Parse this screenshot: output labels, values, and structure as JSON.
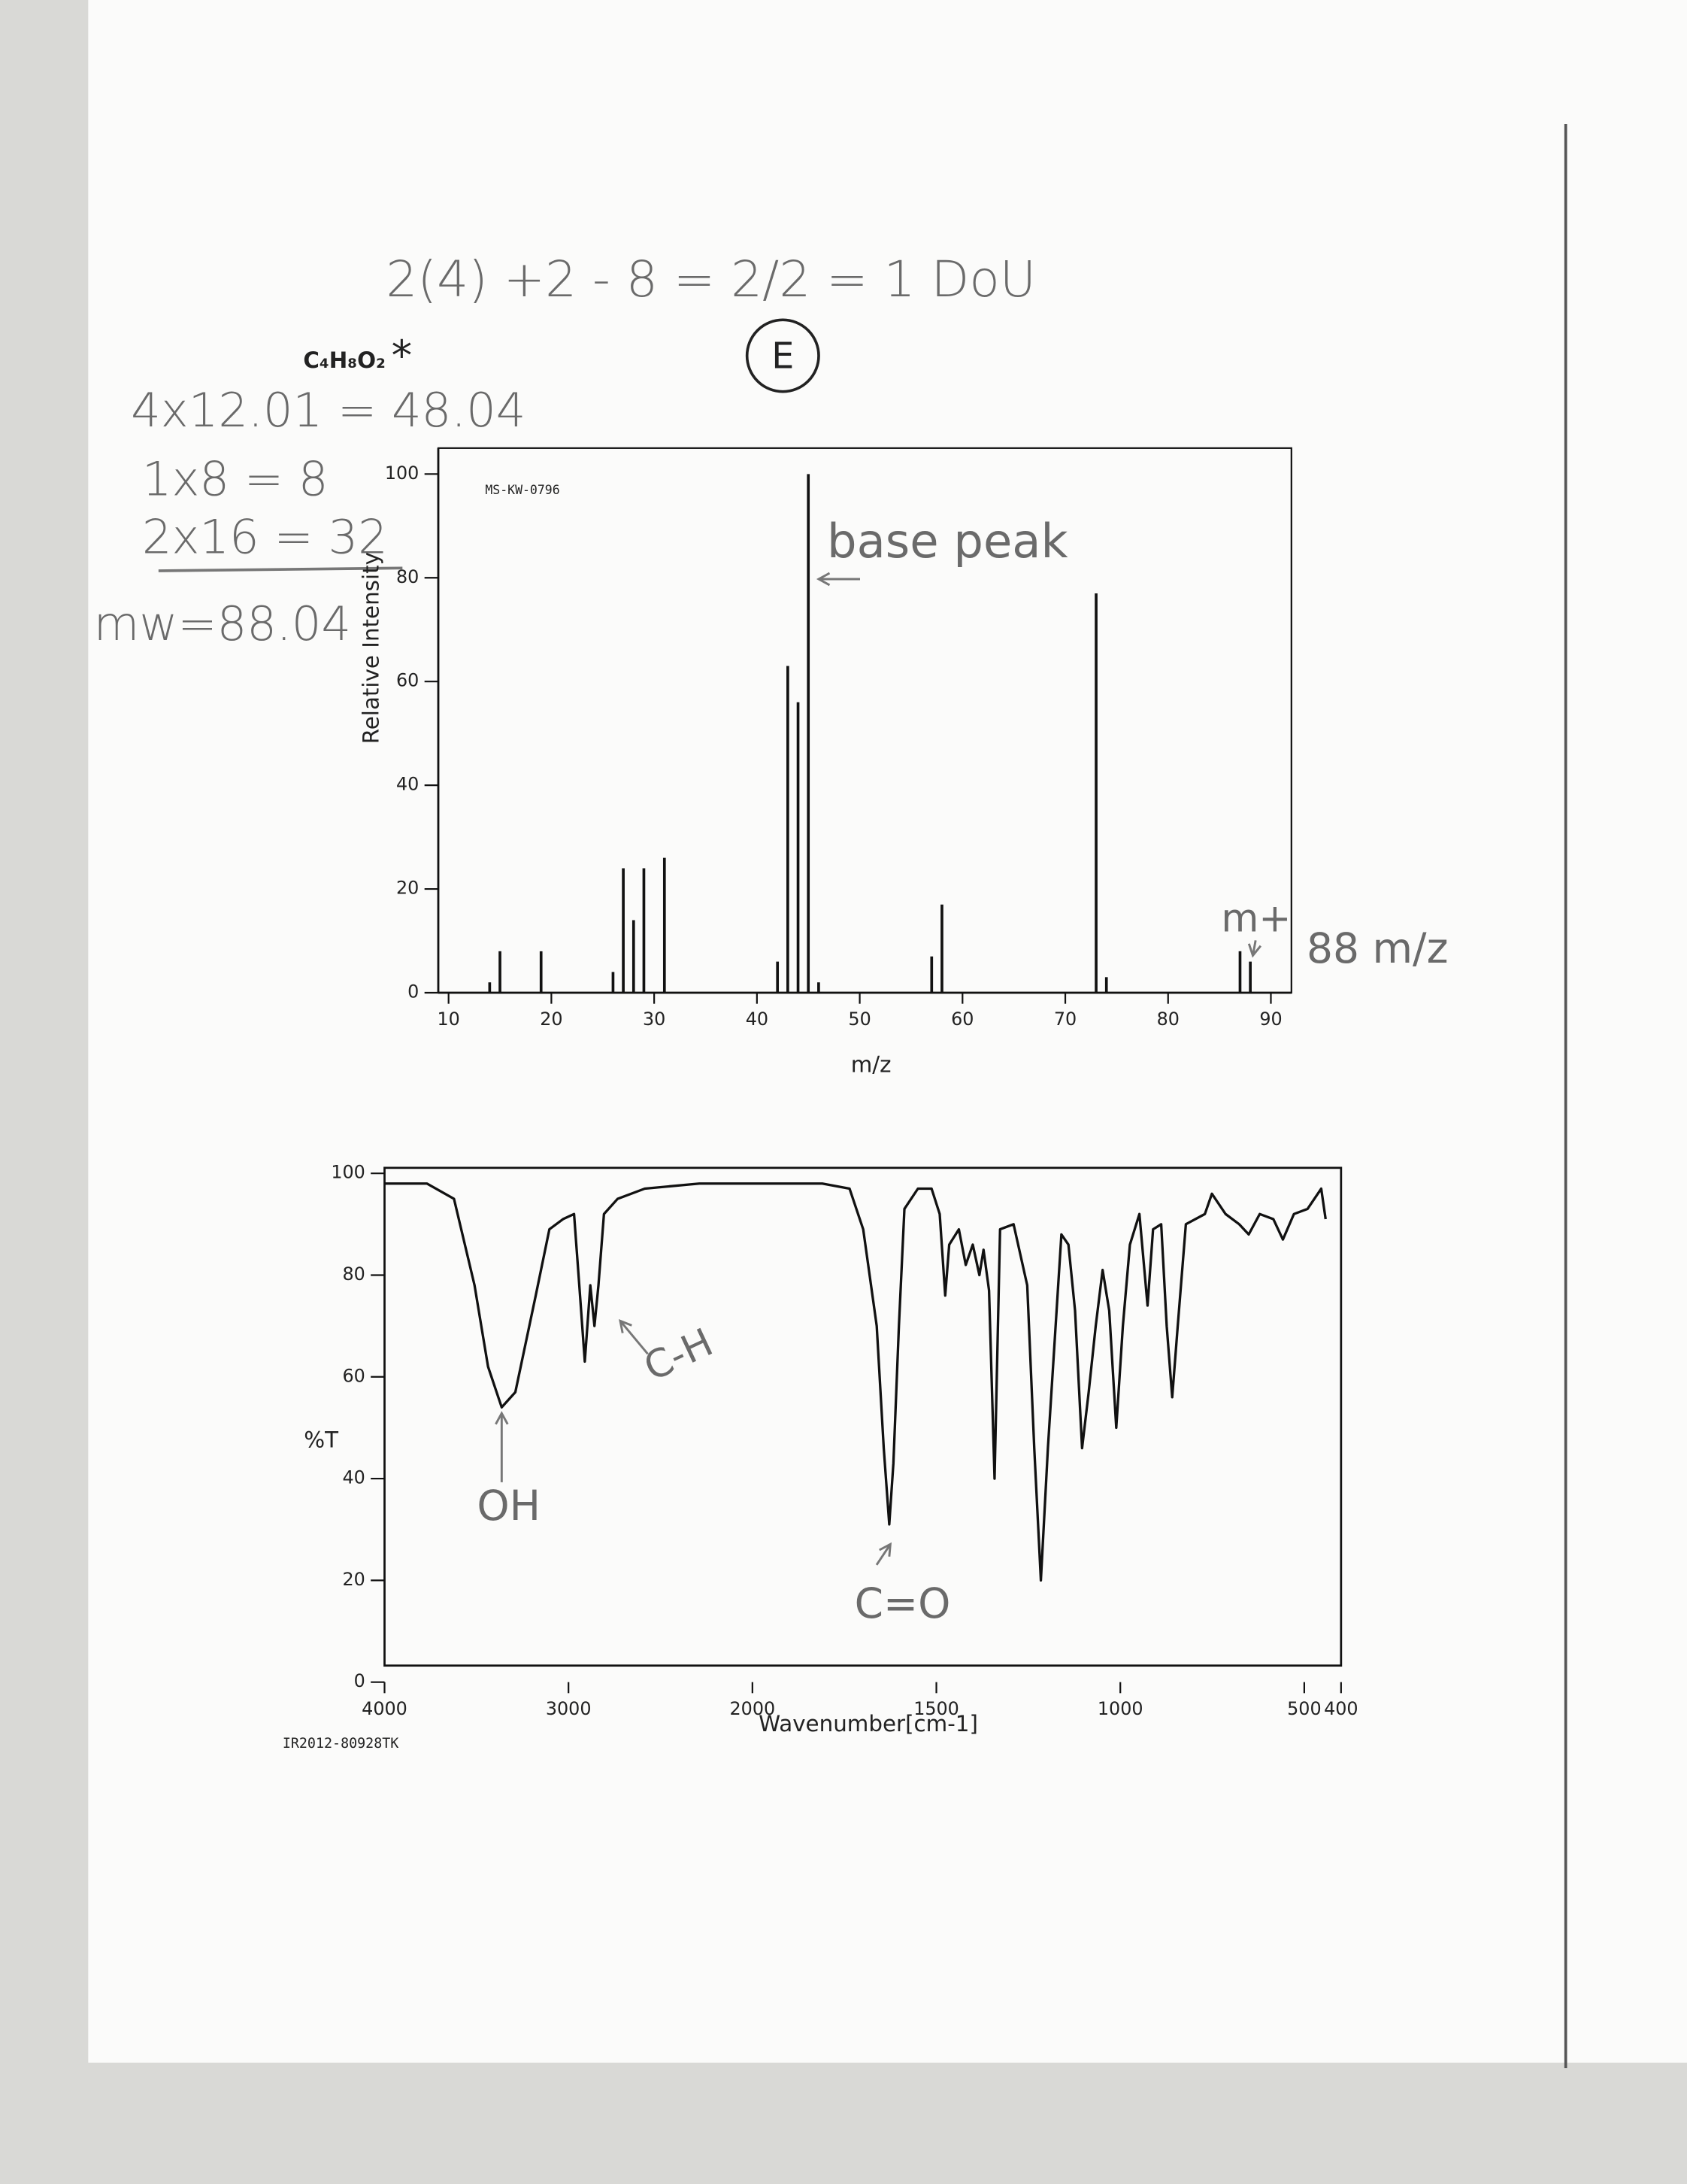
{
  "notes": [
    "2(4) +2 - 8 = 2/2 = 1 DoU",
    "E",
    "C₄H₈O₂",
    "*",
    "4x12.01 = 48.04",
    "1x8 = 8",
    "2x16 = 32",
    "mw=88.04"
  ],
  "chart_data": [
    {
      "type": "bar",
      "xlabel": "m/z",
      "ylabel": "Relative Intensity",
      "color": "#111111",
      "annotations": [
        "MS-KW-0796",
        "base peak",
        "m+",
        "88 m/z"
      ],
      "x": [
        14,
        15,
        19,
        26,
        27,
        28,
        29,
        31,
        42,
        43,
        44,
        45,
        46,
        57,
        58,
        73,
        74,
        87,
        88
      ],
      "values": [
        2,
        8,
        8,
        4,
        24,
        14,
        24,
        26,
        6,
        63,
        56,
        100,
        2,
        7,
        17,
        77,
        3,
        8,
        6
      ],
      "xlim": [
        9,
        92
      ],
      "xticks": [
        10,
        20,
        30,
        40,
        50,
        60,
        70,
        80,
        90
      ],
      "ylim": [
        0,
        105
      ],
      "yticks": [
        0,
        20,
        40,
        60,
        80,
        100
      ]
    },
    {
      "type": "line",
      "xlabel": "Wavenumber[cm-1]",
      "ylabel": "%T",
      "color": "#111111",
      "annotations": [
        "IR2012-80928TK",
        "OH",
        "C-H",
        "C=O"
      ],
      "x": [
        4000,
        3770,
        3622,
        3511,
        3437,
        3363,
        3289,
        3178,
        3104,
        3030,
        2970,
        2941,
        2911,
        2881,
        2859,
        2837,
        2807,
        2733,
        2585,
        2289,
        2000,
        1810,
        1736,
        1699,
        1662,
        1643,
        1628,
        1617,
        1602,
        1587,
        1550,
        1513,
        1491,
        1476,
        1465,
        1439,
        1420,
        1401,
        1383,
        1372,
        1357,
        1342,
        1327,
        1290,
        1253,
        1234,
        1216,
        1197,
        1160,
        1141,
        1123,
        1104,
        1086,
        1067,
        1048,
        1030,
        1011,
        993,
        974,
        948,
        926,
        911,
        889,
        874,
        859,
        844,
        822,
        770,
        751,
        714,
        677,
        651,
        621,
        584,
        558,
        528,
        491,
        454,
        442
      ],
      "values": [
        98,
        98,
        95,
        78,
        62,
        54,
        57,
        76,
        89,
        91,
        92,
        78,
        63,
        78,
        70,
        78,
        92,
        95,
        97,
        98,
        98,
        98,
        97,
        89,
        70,
        46,
        31,
        43,
        70,
        93,
        97,
        97,
        92,
        76,
        86,
        89,
        82,
        86,
        80,
        85,
        77,
        40,
        89,
        90,
        78,
        46,
        20,
        46,
        88,
        86,
        73,
        46,
        57,
        70,
        81,
        73,
        50,
        70,
        86,
        92,
        74,
        89,
        90,
        70,
        56,
        70,
        90,
        92,
        96,
        92,
        90,
        88,
        92,
        91,
        87,
        92,
        93,
        97,
        91
      ],
      "xlim": [
        4000,
        400
      ],
      "xbreak": 2000,
      "xticks": [
        4000,
        3000,
        2000,
        1500,
        1000,
        500,
        400
      ],
      "ylim": [
        0,
        100
      ],
      "yticks": [
        0,
        20,
        40,
        60,
        80,
        100
      ]
    }
  ]
}
